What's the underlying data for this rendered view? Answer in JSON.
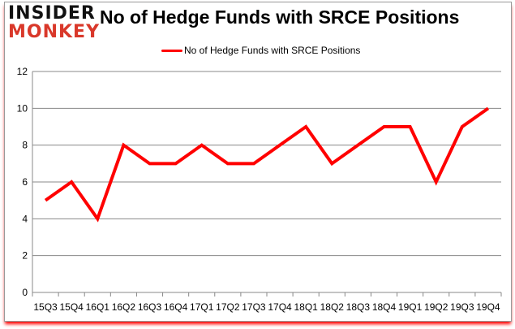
{
  "logo": {
    "line1": "INSIDER",
    "line2": "MONKEY"
  },
  "chart_data": {
    "type": "line",
    "title": "No of Hedge Funds with SRCE Positions",
    "xlabel": "",
    "ylabel": "",
    "categories": [
      "15Q3",
      "15Q4",
      "16Q1",
      "16Q2",
      "16Q3",
      "16Q4",
      "17Q1",
      "17Q2",
      "17Q3",
      "17Q4",
      "18Q1",
      "18Q2",
      "18Q3",
      "18Q4",
      "19Q1",
      "19Q2",
      "19Q3",
      "19Q4"
    ],
    "series": [
      {
        "name": "No of Hedge Funds with SRCE Positions",
        "color": "#ff0000",
        "values": [
          5,
          6,
          4,
          8,
          7,
          7,
          8,
          7,
          7,
          8,
          9,
          7,
          8,
          9,
          9,
          6,
          9,
          10
        ]
      }
    ],
    "ylim": [
      0,
      12
    ],
    "yticks": [
      0,
      2,
      4,
      6,
      8,
      10,
      12
    ],
    "grid": true,
    "legend_position": "top"
  }
}
